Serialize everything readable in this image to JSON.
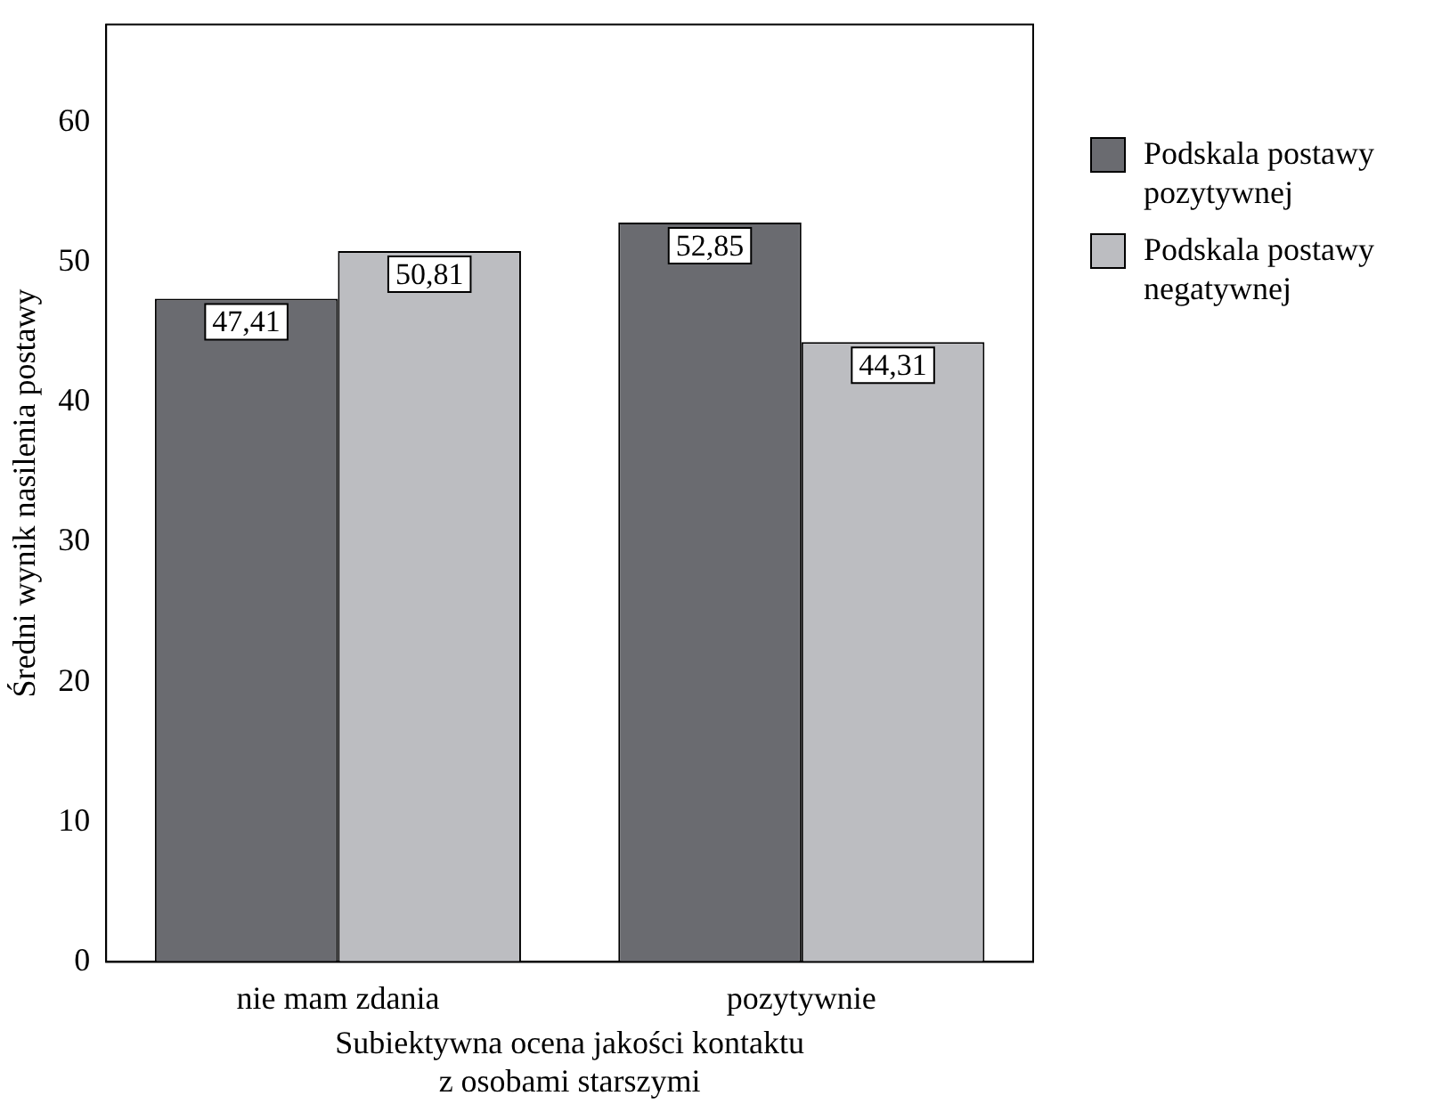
{
  "chart_data": {
    "type": "bar",
    "xlabel": "Subiektywna ocena jakości kontaktu\nz osobami starszymi",
    "ylabel": "Średni wynik nasilenia postawy",
    "categories": [
      "nie mam zdania",
      "pozytywnie"
    ],
    "series": [
      {
        "name": "Podskala postawy\npozytywnej",
        "color": "#6a6b70",
        "values": [
          47.41,
          52.85
        ],
        "value_labels": [
          "47,41",
          "52,85"
        ]
      },
      {
        "name": "Podskala postawy\nnegatywnej",
        "color": "#bcbdc1",
        "values": [
          50.81,
          44.31
        ],
        "value_labels": [
          "50,81",
          "44,31"
        ]
      }
    ],
    "ylim": [
      0,
      67
    ],
    "yticks": [
      0,
      10,
      20,
      30,
      40,
      50,
      60
    ],
    "grid": false,
    "legend": "right"
  }
}
